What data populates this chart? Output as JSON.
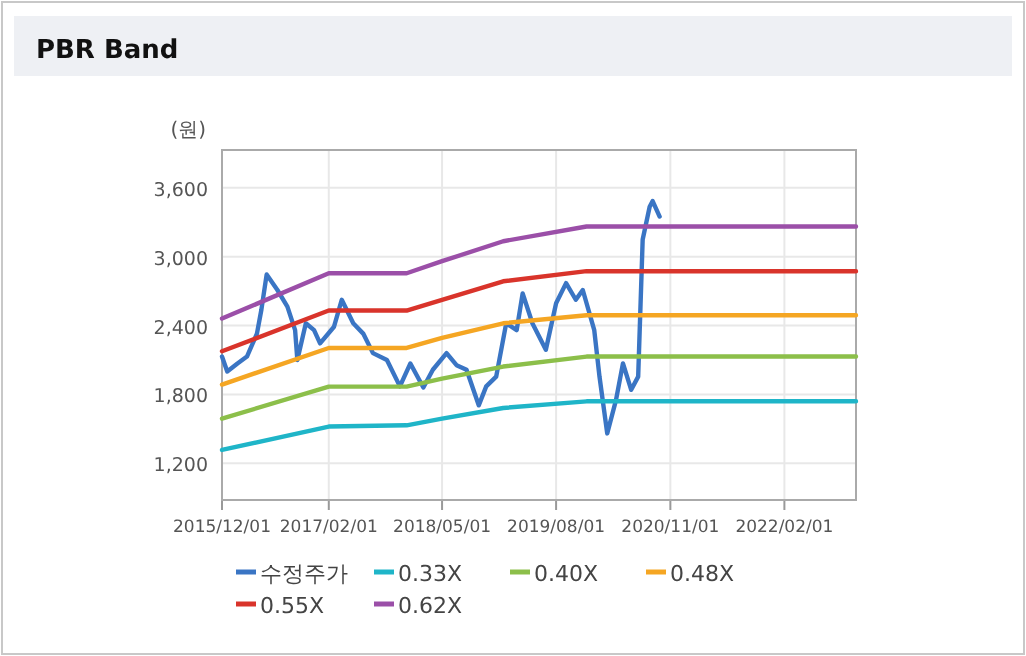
{
  "chart_data": {
    "type": "line",
    "title": "PBR Band",
    "ylabel": "(원)",
    "grid": true,
    "legend": "bottom",
    "marker": "none",
    "line_style": "solid",
    "xlim": [
      "2015-12-01",
      "2022-11-15"
    ],
    "ylim": [
      880,
      3930
    ],
    "xticks": [
      {
        "value": "2015-12-01",
        "label": "2015/12/01"
      },
      {
        "value": "2017-02-01",
        "label": "2017/02/01"
      },
      {
        "value": "2018-05-01",
        "label": "2018/05/01"
      },
      {
        "value": "2019-08-01",
        "label": "2019/08/01"
      },
      {
        "value": "2020-11-01",
        "label": "2020/11/01"
      },
      {
        "value": "2022-02-01",
        "label": "2022/02/01"
      }
    ],
    "yticks": [
      {
        "value": 1200,
        "label": "1,200"
      },
      {
        "value": 1800,
        "label": "1,800"
      },
      {
        "value": 2400,
        "label": "2,400"
      },
      {
        "value": 3000,
        "label": "3,000"
      },
      {
        "value": 3600,
        "label": "3,600"
      }
    ],
    "series": [
      {
        "name": "수정주가",
        "color": "#3a75c4",
        "x": [
          "2015-12-01",
          "2015-12-22",
          "2016-02-01",
          "2016-03-10",
          "2016-04-19",
          "2016-05-07",
          "2016-05-28",
          "2016-07-10",
          "2016-08-19",
          "2016-09-19",
          "2016-09-28",
          "2016-11-01",
          "2016-12-04",
          "2016-12-28",
          "2017-02-22",
          "2017-03-25",
          "2017-05-10",
          "2017-06-19",
          "2017-07-28",
          "2017-09-22",
          "2017-11-13",
          "2017-12-25",
          "2018-02-15",
          "2018-03-25",
          "2018-05-19",
          "2018-06-28",
          "2018-08-07",
          "2018-09-25",
          "2018-10-25",
          "2018-12-04",
          "2019-01-13",
          "2019-02-24",
          "2019-03-20",
          "2019-04-28",
          "2019-06-21",
          "2019-08-01",
          "2019-09-10",
          "2019-10-19",
          "2019-11-16",
          "2020-01-01",
          "2020-01-22",
          "2020-02-22",
          "2020-03-28",
          "2020-04-25",
          "2020-05-28",
          "2020-06-25",
          "2020-07-13",
          "2020-08-10",
          "2020-08-22",
          "2020-09-19"
        ],
        "values": [
          2130,
          2000,
          2070,
          2130,
          2330,
          2540,
          2845,
          2710,
          2565,
          2360,
          2100,
          2420,
          2360,
          2245,
          2390,
          2625,
          2420,
          2330,
          2160,
          2100,
          1870,
          2070,
          1860,
          2015,
          2160,
          2055,
          2015,
          1705,
          1870,
          1955,
          2420,
          2360,
          2680,
          2420,
          2190,
          2595,
          2770,
          2625,
          2710,
          2360,
          1955,
          1460,
          1750,
          2070,
          1840,
          1955,
          3150,
          3435,
          3485,
          3350
        ]
      },
      {
        "name": "0.33X",
        "color": "#1fb5c8",
        "x": [
          "2015-12-01",
          "2017-02-01",
          "2017-12-10",
          "2018-05-01",
          "2019-01-01",
          "2019-12-01",
          "2022-11-15"
        ],
        "values": [
          1316,
          1520,
          1531,
          1589,
          1682,
          1740,
          1740
        ]
      },
      {
        "name": "0.40X",
        "color": "#8cbf4a",
        "x": [
          "2015-12-01",
          "2017-02-01",
          "2017-12-10",
          "2018-05-01",
          "2019-01-01",
          "2019-12-01",
          "2022-11-15"
        ],
        "values": [
          1589,
          1868,
          1868,
          1938,
          2043,
          2130,
          2130
        ]
      },
      {
        "name": "0.48X",
        "color": "#f5a623",
        "x": [
          "2015-12-01",
          "2017-02-01",
          "2017-12-10",
          "2018-05-01",
          "2019-01-01",
          "2019-12-01",
          "2022-11-15"
        ],
        "values": [
          1886,
          2205,
          2205,
          2293,
          2420,
          2490,
          2490
        ]
      },
      {
        "name": "0.55X",
        "color": "#d9342b",
        "x": [
          "2015-12-01",
          "2017-02-01",
          "2017-12-10",
          "2018-05-01",
          "2019-01-01",
          "2019-12-01",
          "2022-11-15"
        ],
        "values": [
          2176,
          2531,
          2531,
          2624,
          2786,
          2874,
          2874
        ]
      },
      {
        "name": "0.62X",
        "color": "#9b4fa8",
        "x": [
          "2015-12-01",
          "2017-02-01",
          "2017-12-10",
          "2018-05-01",
          "2019-01-01",
          "2019-12-01",
          "2022-11-15"
        ],
        "values": [
          2461,
          2856,
          2856,
          2961,
          3135,
          3263,
          3263
        ]
      }
    ]
  }
}
